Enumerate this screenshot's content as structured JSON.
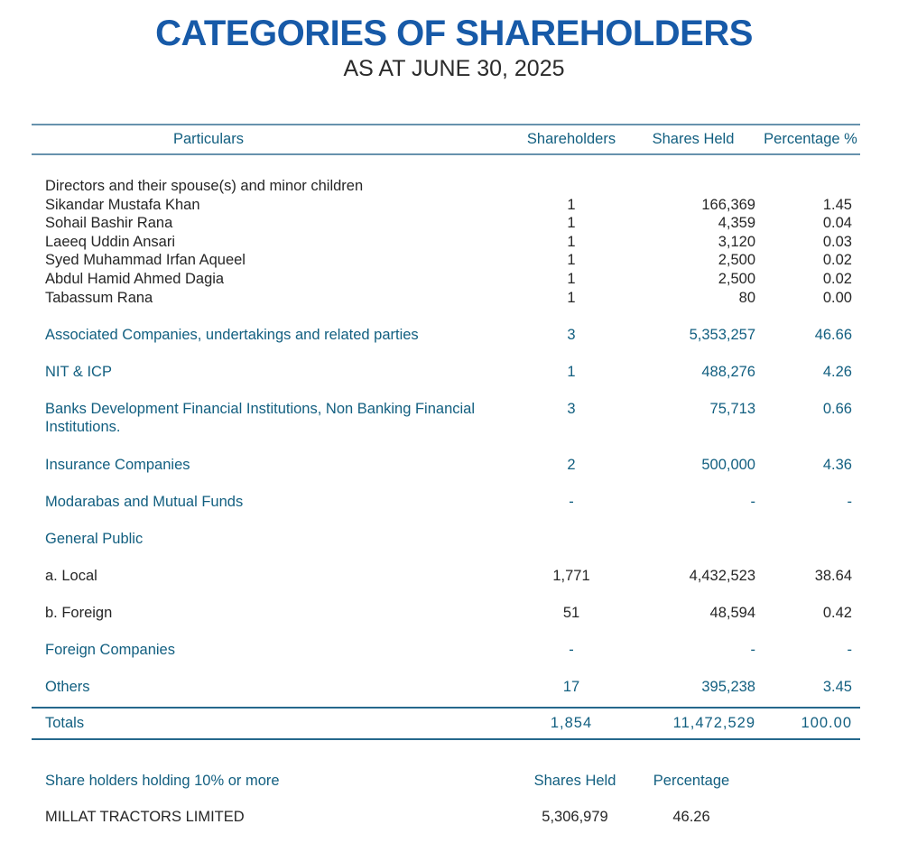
{
  "title": "CATEGORIES OF SHAREHOLDERS",
  "subtitle": "AS AT JUNE 30, 2025",
  "colors": {
    "title_blue": "#175aa8",
    "category_teal": "#125f80",
    "body_text": "#262626",
    "header_rule": "#6792ad",
    "totals_rule": "#25688c"
  },
  "table": {
    "headers": [
      "Particulars",
      "Shareholders",
      "Shares Held",
      "Percentage %"
    ],
    "rows": [
      {
        "label": "Directors and their spouse(s) and minor children",
        "shareholders": "",
        "shares_held": "",
        "percentage": ""
      },
      {
        "label": "Sikandar Mustafa Khan",
        "shareholders": "1",
        "shares_held": "166,369",
        "percentage": "1.45"
      },
      {
        "label": "Sohail Bashir Rana",
        "shareholders": "1",
        "shares_held": "4,359",
        "percentage": "0.04"
      },
      {
        "label": "Laeeq Uddin Ansari",
        "shareholders": "1",
        "shares_held": "3,120",
        "percentage": "0.03"
      },
      {
        "label": "Syed Muhammad Irfan Aqueel",
        "shareholders": "1",
        "shares_held": "2,500",
        "percentage": "0.02"
      },
      {
        "label": "Abdul Hamid Ahmed Dagia",
        "shareholders": "1",
        "shares_held": "2,500",
        "percentage": "0.02"
      },
      {
        "label": "Tabassum Rana",
        "shareholders": "1",
        "shares_held": "80",
        "percentage": "0.00"
      },
      {
        "label": "Associated Companies, undertakings and related parties",
        "shareholders": "3",
        "shares_held": "5,353,257",
        "percentage": "46.66"
      },
      {
        "label": "NIT & ICP",
        "shareholders": "1",
        "shares_held": "488,276",
        "percentage": "4.26"
      },
      {
        "label": "Banks Development Financial Institutions, Non Banking Financial Institutions.",
        "shareholders": "3",
        "shares_held": "75,713",
        "percentage": "0.66"
      },
      {
        "label": "Insurance Companies",
        "shareholders": "2",
        "shares_held": "500,000",
        "percentage": "4.36"
      },
      {
        "label": "Modarabas and Mutual Funds",
        "shareholders": "-",
        "shares_held": "-",
        "percentage": "-"
      },
      {
        "label": "General Public",
        "shareholders": "",
        "shares_held": "",
        "percentage": ""
      },
      {
        "label": "a. Local",
        "shareholders": "1,771",
        "shares_held": "4,432,523",
        "percentage": "38.64"
      },
      {
        "label": "b. Foreign",
        "shareholders": "51",
        "shares_held": "48,594",
        "percentage": "0.42"
      },
      {
        "label": "Foreign Companies",
        "shareholders": "-",
        "shares_held": "-",
        "percentage": "-"
      },
      {
        "label": "Others",
        "shareholders": "17",
        "shares_held": "395,238",
        "percentage": "3.45"
      }
    ],
    "totals": {
      "label": "Totals",
      "shareholders": "1,854",
      "shares_held": "11,472,529",
      "percentage": "100.00"
    }
  },
  "major_holders": {
    "section_label": "Share holders holding 10% or more",
    "col_headers": [
      "Shares Held",
      "Percentage"
    ],
    "rows": [
      {
        "label": "MILLAT TRACTORS LIMITED",
        "shares_held": "5,306,979",
        "percentage": "46.26"
      }
    ]
  }
}
